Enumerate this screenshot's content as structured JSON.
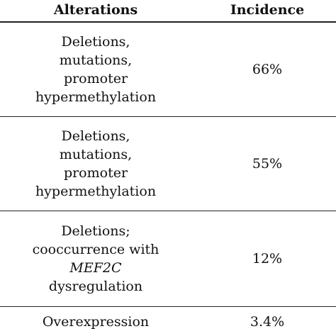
{
  "table": {
    "headers": {
      "alterations": "Alterations",
      "incidence": "Incidence"
    },
    "rows": [
      {
        "alteration_lines": [
          "Deletions,",
          "mutations,",
          "promoter",
          "hypermethylation"
        ],
        "incidence": "66%"
      },
      {
        "alteration_lines": [
          "Deletions,",
          "mutations,",
          "promoter",
          "hypermethylation"
        ],
        "incidence": "55%"
      },
      {
        "alteration_lines": [
          "Deletions;",
          "cooccurrence with",
          "MEF2C",
          "dysregulation"
        ],
        "incidence": "12%"
      },
      {
        "alteration_lines": [
          "Overexpression"
        ],
        "incidence": "3.4%"
      }
    ]
  }
}
